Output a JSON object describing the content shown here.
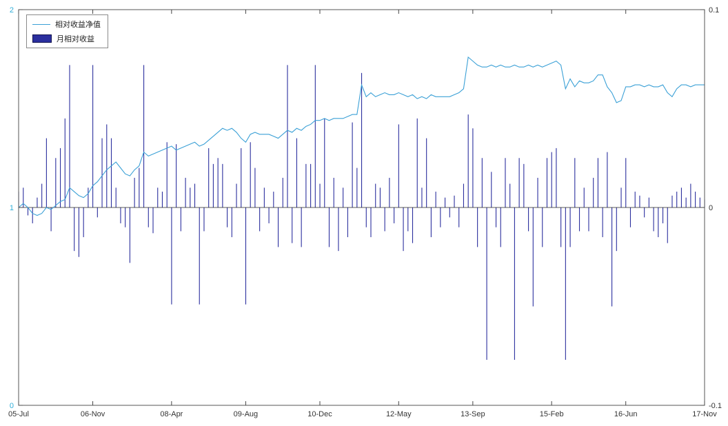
{
  "figure": {
    "background": "#ffffff",
    "plot_box_color": "#555555",
    "zero_line_color": "#222222"
  },
  "chart_data": {
    "type": "combo",
    "title": "",
    "xlabel": "",
    "ylabel": "",
    "grid": false,
    "x_tick_labels": [
      "05-Jul",
      "06-Nov",
      "08-Apr",
      "09-Aug",
      "10-Dec",
      "12-May",
      "13-Sep",
      "15-Feb",
      "16-Jun",
      "17-Nov"
    ],
    "x_tick_indices": [
      0,
      16,
      33,
      49,
      65,
      82,
      98,
      115,
      131,
      148
    ],
    "left_axis": {
      "min": 0,
      "max": 2,
      "ticks": [
        0,
        1,
        2
      ],
      "tick_labels": [
        "0",
        "1",
        "2"
      ],
      "color": "#2fadd8"
    },
    "right_axis": {
      "min": -0.1,
      "max": 0.1,
      "ticks": [
        -0.1,
        0,
        0.1
      ],
      "tick_labels": [
        "-0.1",
        "0",
        "0.1"
      ],
      "color": "#333333"
    },
    "legend": {
      "position": "top-left",
      "entries": [
        {
          "label": "相对收益净值",
          "type": "line",
          "color": "#3aa0d6"
        },
        {
          "label": "月相对收益",
          "type": "bar",
          "color": "#2b2f9e"
        }
      ]
    },
    "series": [
      {
        "name": "相对收益净值",
        "type": "line",
        "axis": "left",
        "color": "#3aa0d6",
        "values": [
          1.0,
          1.02,
          1.0,
          0.97,
          0.96,
          0.97,
          1.0,
          0.99,
          1.01,
          1.03,
          1.04,
          1.1,
          1.08,
          1.06,
          1.05,
          1.07,
          1.11,
          1.13,
          1.16,
          1.19,
          1.21,
          1.23,
          1.2,
          1.17,
          1.16,
          1.19,
          1.21,
          1.28,
          1.26,
          1.27,
          1.28,
          1.29,
          1.3,
          1.31,
          1.29,
          1.3,
          1.31,
          1.32,
          1.33,
          1.31,
          1.32,
          1.34,
          1.36,
          1.38,
          1.4,
          1.39,
          1.4,
          1.38,
          1.35,
          1.33,
          1.37,
          1.38,
          1.37,
          1.37,
          1.37,
          1.36,
          1.35,
          1.37,
          1.39,
          1.38,
          1.4,
          1.39,
          1.41,
          1.42,
          1.44,
          1.44,
          1.45,
          1.44,
          1.45,
          1.45,
          1.45,
          1.46,
          1.47,
          1.47,
          1.62,
          1.56,
          1.58,
          1.56,
          1.57,
          1.58,
          1.57,
          1.57,
          1.58,
          1.57,
          1.56,
          1.57,
          1.55,
          1.56,
          1.55,
          1.57,
          1.56,
          1.56,
          1.56,
          1.56,
          1.57,
          1.58,
          1.6,
          1.76,
          1.74,
          1.72,
          1.71,
          1.71,
          1.72,
          1.71,
          1.72,
          1.71,
          1.71,
          1.72,
          1.71,
          1.71,
          1.72,
          1.71,
          1.72,
          1.71,
          1.72,
          1.73,
          1.74,
          1.72,
          1.6,
          1.65,
          1.61,
          1.64,
          1.63,
          1.63,
          1.64,
          1.67,
          1.67,
          1.61,
          1.58,
          1.53,
          1.54,
          1.61,
          1.61,
          1.62,
          1.62,
          1.61,
          1.62,
          1.61,
          1.61,
          1.62,
          1.58,
          1.56,
          1.6,
          1.62,
          1.62,
          1.61,
          1.62,
          1.62,
          1.62
        ]
      },
      {
        "name": "月相对收益",
        "type": "bar",
        "axis": "right",
        "color": "#2b2f9e",
        "values": [
          0.008,
          0.01,
          -0.004,
          -0.008,
          0.005,
          0.012,
          0.035,
          -0.012,
          0.025,
          0.03,
          0.045,
          0.072,
          -0.022,
          -0.025,
          -0.015,
          0.01,
          0.072,
          -0.005,
          0.035,
          0.042,
          0.035,
          0.01,
          -0.008,
          -0.01,
          -0.028,
          0.015,
          0.02,
          0.072,
          -0.01,
          -0.013,
          0.01,
          0.008,
          0.033,
          -0.049,
          0.032,
          -0.012,
          0.015,
          0.01,
          0.012,
          -0.049,
          -0.012,
          0.03,
          0.022,
          0.025,
          0.022,
          -0.01,
          -0.015,
          0.012,
          0.03,
          -0.049,
          0.033,
          0.02,
          -0.012,
          0.01,
          -0.008,
          0.008,
          -0.02,
          0.015,
          0.072,
          -0.018,
          0.035,
          -0.02,
          0.022,
          0.022,
          0.072,
          0.012,
          0.045,
          -0.02,
          0.015,
          -0.022,
          0.01,
          -0.015,
          0.043,
          0.02,
          0.068,
          -0.01,
          -0.015,
          0.012,
          0.01,
          -0.012,
          0.015,
          -0.008,
          0.042,
          -0.022,
          -0.012,
          -0.018,
          0.045,
          0.01,
          0.035,
          -0.015,
          0.008,
          -0.01,
          0.005,
          -0.005,
          0.006,
          -0.01,
          0.012,
          0.047,
          0.04,
          -0.02,
          0.025,
          -0.077,
          0.018,
          -0.01,
          -0.02,
          0.025,
          0.012,
          -0.077,
          0.025,
          0.022,
          -0.012,
          -0.05,
          0.015,
          -0.02,
          0.025,
          0.028,
          0.03,
          -0.02,
          -0.077,
          -0.02,
          0.025,
          -0.012,
          0.01,
          -0.012,
          0.015,
          0.025,
          -0.015,
          0.028,
          -0.05,
          -0.022,
          0.01,
          0.025,
          -0.01,
          0.008,
          0.006,
          -0.005,
          0.005,
          -0.012,
          -0.015,
          -0.008,
          -0.018,
          0.006,
          0.008,
          0.01,
          0.005,
          0.012,
          0.008,
          0.005,
          0.004
        ]
      }
    ]
  }
}
